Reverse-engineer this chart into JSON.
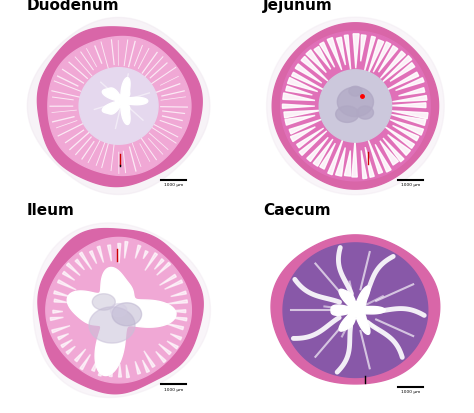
{
  "panels": [
    {
      "label": "Duodenum",
      "row": 0,
      "col": 0
    },
    {
      "label": "Jejunum",
      "row": 0,
      "col": 1
    },
    {
      "label": "Ileum",
      "row": 1,
      "col": 0
    },
    {
      "label": "Caecum",
      "row": 1,
      "col": 1
    }
  ],
  "background_color": "#ffffff",
  "label_fontsize": 11,
  "label_fontweight": "bold",
  "colors": {
    "outer_ring": "#d966a8",
    "duodenum_tissue": "#f0a8d5",
    "duodenum_center": "#e8d8ec",
    "jejunum_tissue": "#e888c8",
    "jejunum_villi": "#ffffff",
    "jejunum_lumen": "#d0c8e0",
    "ileum_tissue": "#f0a8d5",
    "ileum_lumen": "#ffffff",
    "caecum_tissue": "#9868b0",
    "caecum_lumen": "#ffffff",
    "white": "#ffffff",
    "red_bar": "#cc0000",
    "scalebar": "#000000"
  }
}
